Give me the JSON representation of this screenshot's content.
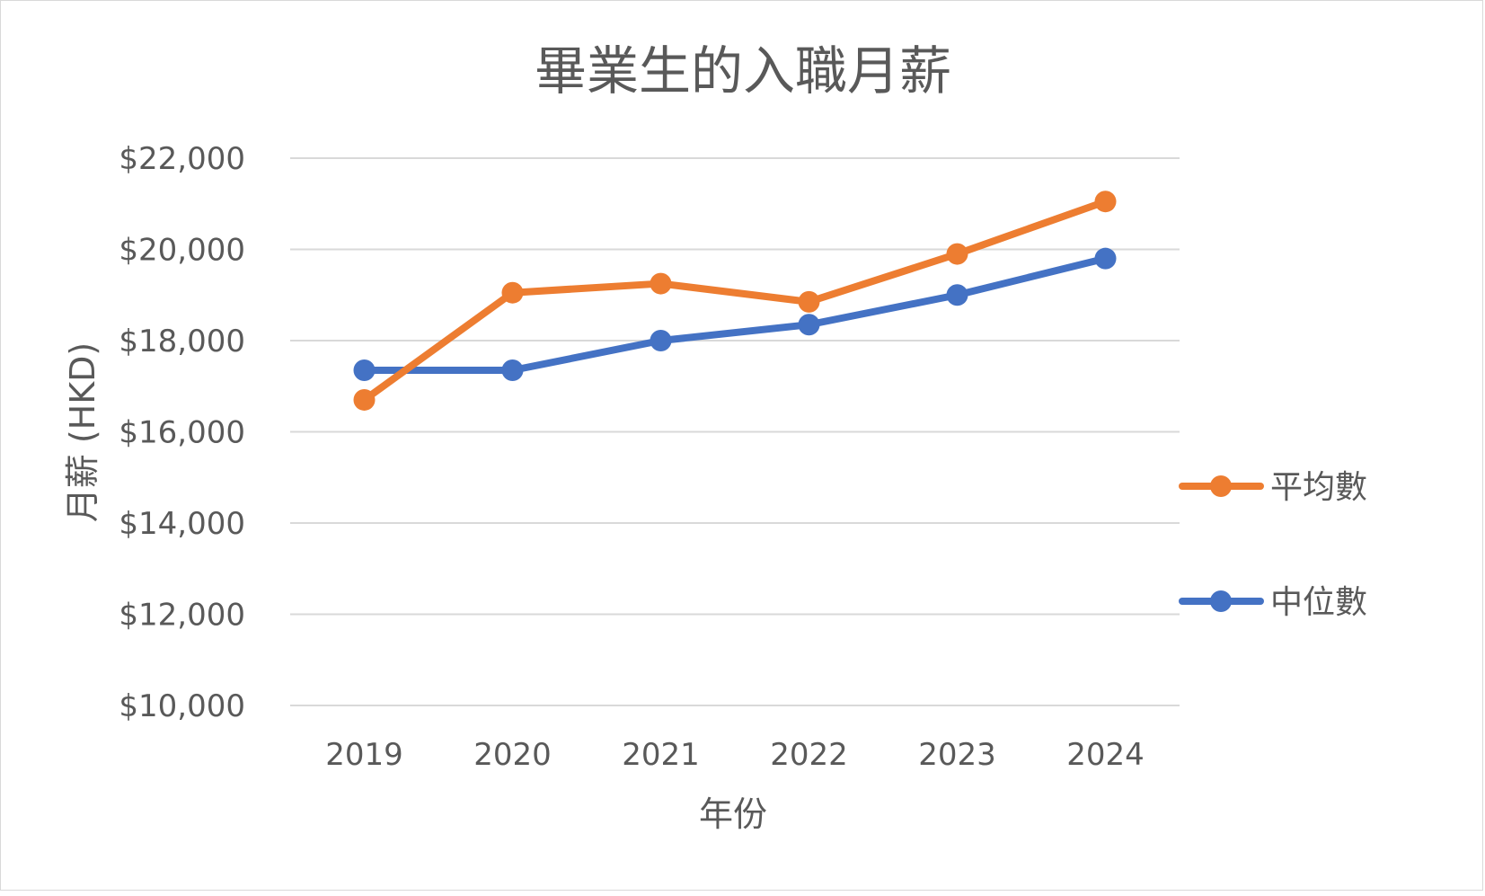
{
  "colors": {
    "background": "#ffffff",
    "grid": "#d9d9d9",
    "text": "#595959",
    "series_mean": "#ed7d31",
    "series_median": "#4472c4"
  },
  "chart_data": {
    "type": "line",
    "title": "畢業生的入職月薪",
    "xlabel": "年份",
    "ylabel": "月薪 (HKD)",
    "categories": [
      "2019",
      "2020",
      "2021",
      "2022",
      "2023",
      "2024"
    ],
    "ylim": [
      10000,
      22000
    ],
    "yticks": [
      10000,
      12000,
      14000,
      16000,
      18000,
      20000,
      22000
    ],
    "ytick_labels": [
      "$10,000",
      "$12,000",
      "$14,000",
      "$16,000",
      "$18,000",
      "$20,000",
      "$22,000"
    ],
    "grid": true,
    "legend_position": "right",
    "series": [
      {
        "name": "平均數",
        "color": "#ed7d31",
        "values": [
          16700,
          19050,
          19250,
          18850,
          19900,
          21050
        ]
      },
      {
        "name": "中位數",
        "color": "#4472c4",
        "values": [
          17350,
          17350,
          18000,
          18350,
          19000,
          19800
        ]
      }
    ]
  }
}
